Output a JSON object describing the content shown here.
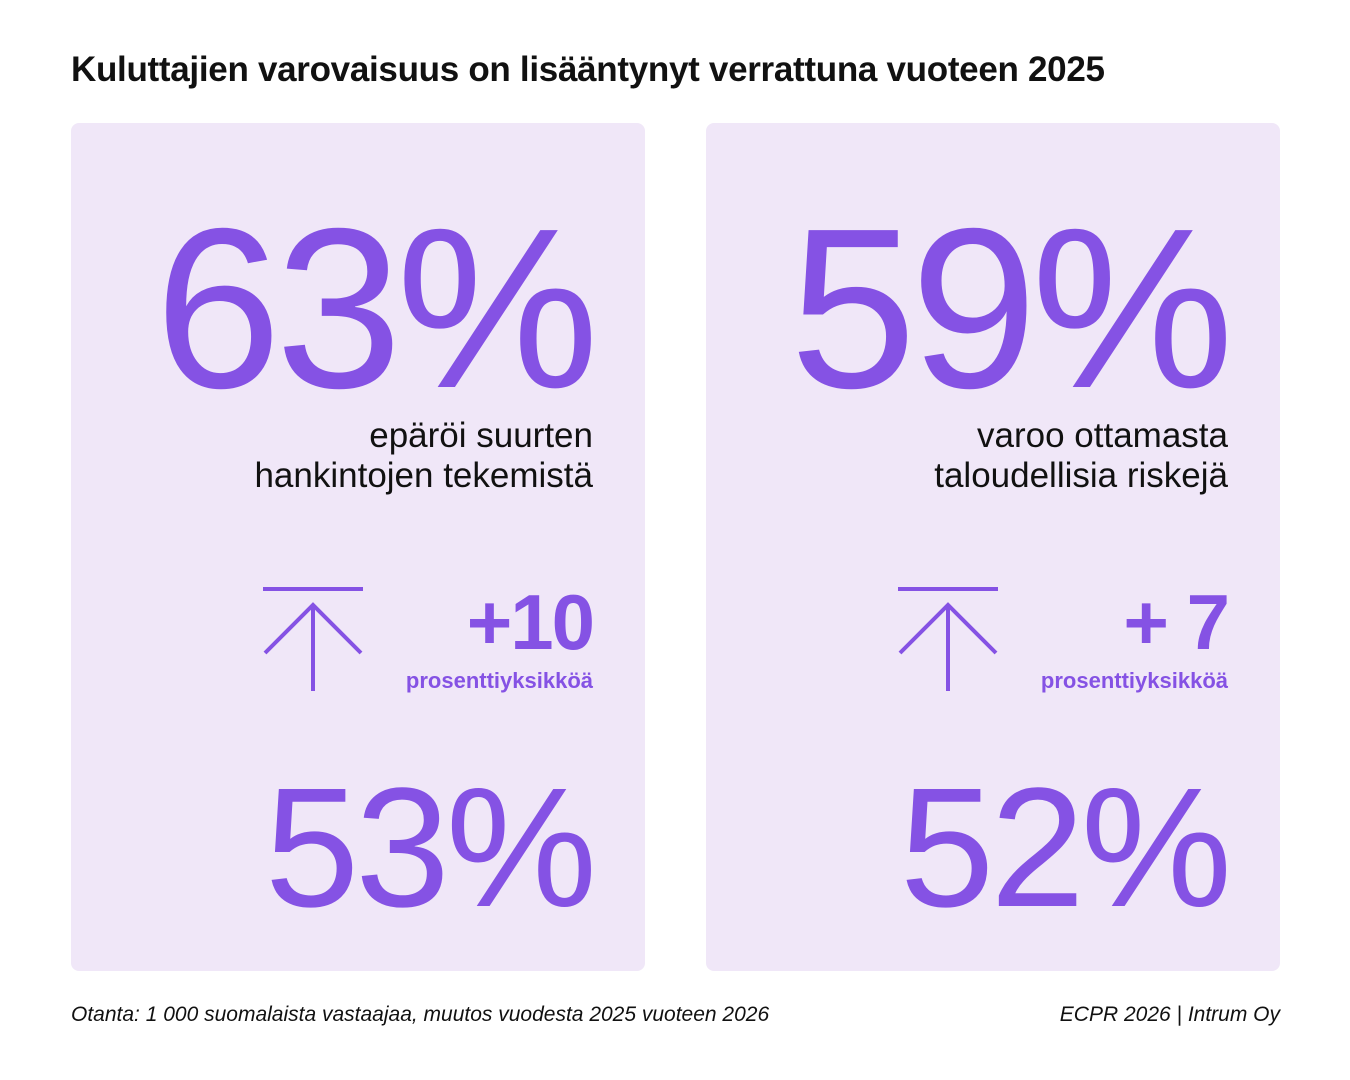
{
  "title": "Kuluttajien varovaisuus on lisääntynyt verrattuna vuoteen 2025",
  "colors": {
    "accent": "#8552e4",
    "card_background": "#f0e7f8",
    "text": "#111111"
  },
  "cards": [
    {
      "current_value": "63%",
      "description_line1": "epäröi suurten",
      "description_line2": "hankintojen tekemistä",
      "change_icon": "arrow-up-to-line-icon",
      "change_value": "+10",
      "change_unit": "prosenttiyksikköä",
      "previous_value": "53%"
    },
    {
      "current_value": "59%",
      "description_line1": "varoo ottamasta",
      "description_line2": "taloudellisia riskejä",
      "change_icon": "arrow-up-to-line-icon",
      "change_value": "+ 7",
      "change_unit": "prosenttiyksikköä",
      "previous_value": "52%"
    }
  ],
  "footer": {
    "sample_note": "Otanta: 1 000 suomalaista vastaajaa, muutos vuodesta 2025 vuoteen 2026",
    "source": "ECPR 2026 | Intrum Oy"
  }
}
